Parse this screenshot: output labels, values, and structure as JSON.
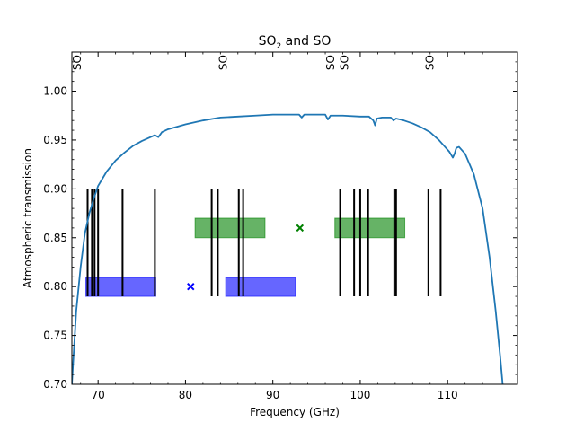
{
  "chart_data": {
    "type": "line",
    "title": "SO",
    "title_subscript": "2",
    "title_rest": " and SO",
    "xlabel": "Frequency (GHz)",
    "ylabel": "Atmospheric transmission",
    "xlim": [
      67,
      118
    ],
    "ylim": [
      0.7,
      1.04
    ],
    "x_ticks": [
      70,
      80,
      90,
      100,
      110
    ],
    "y_ticks": [
      0.7,
      0.75,
      0.8,
      0.85,
      0.9,
      0.95,
      1.0
    ],
    "grid": false,
    "colors": {
      "transmission": "#1f77b4",
      "blue": "#0000ff",
      "green": "#008000",
      "line": "#000000"
    },
    "transmission_curve": {
      "x": [
        67.0,
        67.5,
        68.0,
        68.5,
        69.0,
        69.5,
        70.0,
        71.0,
        72.0,
        73.0,
        74.0,
        75.0,
        76.0,
        76.5,
        76.9,
        77.3,
        78.0,
        80.0,
        82.0,
        84.0,
        86.0,
        88.0,
        90.0,
        92.0,
        93.0,
        93.3,
        93.6,
        94.0,
        96.0,
        96.3,
        96.6,
        98.0,
        100.0,
        101.0,
        101.5,
        101.7,
        101.9,
        102.5,
        103.5,
        103.8,
        104.1,
        105.0,
        106.0,
        107.0,
        108.0,
        109.0,
        109.7,
        110.2,
        110.6,
        110.8,
        111.0,
        111.3,
        112.0,
        113.0,
        114.0,
        114.8,
        115.5,
        116.0,
        116.3
      ],
      "y": [
        0.7,
        0.775,
        0.82,
        0.855,
        0.875,
        0.89,
        0.903,
        0.918,
        0.929,
        0.937,
        0.944,
        0.949,
        0.953,
        0.955,
        0.953,
        0.958,
        0.961,
        0.966,
        0.97,
        0.973,
        0.974,
        0.975,
        0.976,
        0.976,
        0.976,
        0.973,
        0.976,
        0.976,
        0.976,
        0.971,
        0.975,
        0.975,
        0.974,
        0.974,
        0.97,
        0.965,
        0.972,
        0.973,
        0.973,
        0.97,
        0.972,
        0.97,
        0.967,
        0.963,
        0.958,
        0.95,
        0.943,
        0.938,
        0.932,
        0.936,
        0.942,
        0.943,
        0.936,
        0.915,
        0.88,
        0.83,
        0.775,
        0.73,
        0.7
      ]
    },
    "vertical_lines": {
      "x": [
        68.8,
        69.3,
        69.6,
        70.0,
        72.8,
        76.5,
        83.0,
        83.7,
        86.1,
        86.6,
        97.7,
        99.3,
        100.0,
        100.9,
        103.9,
        104.1,
        107.8,
        109.2
      ],
      "ymin": 0.79,
      "ymax": 0.9
    },
    "bars": [
      {
        "color": "blue",
        "x0": 68.6,
        "x1": 76.6,
        "y0": 0.79,
        "y1": 0.809
      },
      {
        "color": "blue",
        "x0": 84.6,
        "x1": 92.6,
        "y0": 0.79,
        "y1": 0.809
      },
      {
        "color": "green",
        "x0": 81.1,
        "x1": 89.1,
        "y0": 0.85,
        "y1": 0.87
      },
      {
        "color": "green",
        "x0": 97.1,
        "x1": 105.1,
        "y0": 0.85,
        "y1": 0.87
      }
    ],
    "markers": [
      {
        "color": "blue",
        "x": 80.6,
        "y": 0.8,
        "symbol": "×"
      },
      {
        "color": "green",
        "x": 93.1,
        "y": 0.86,
        "symbol": "×"
      }
    ],
    "line_labels": [
      {
        "x": 67.6,
        "text": "SO"
      },
      {
        "x": 84.3,
        "text": "SO"
      },
      {
        "x": 96.6,
        "text": "SO"
      },
      {
        "x": 98.2,
        "text": "SO"
      },
      {
        "x": 108.0,
        "text": "SO"
      }
    ]
  }
}
